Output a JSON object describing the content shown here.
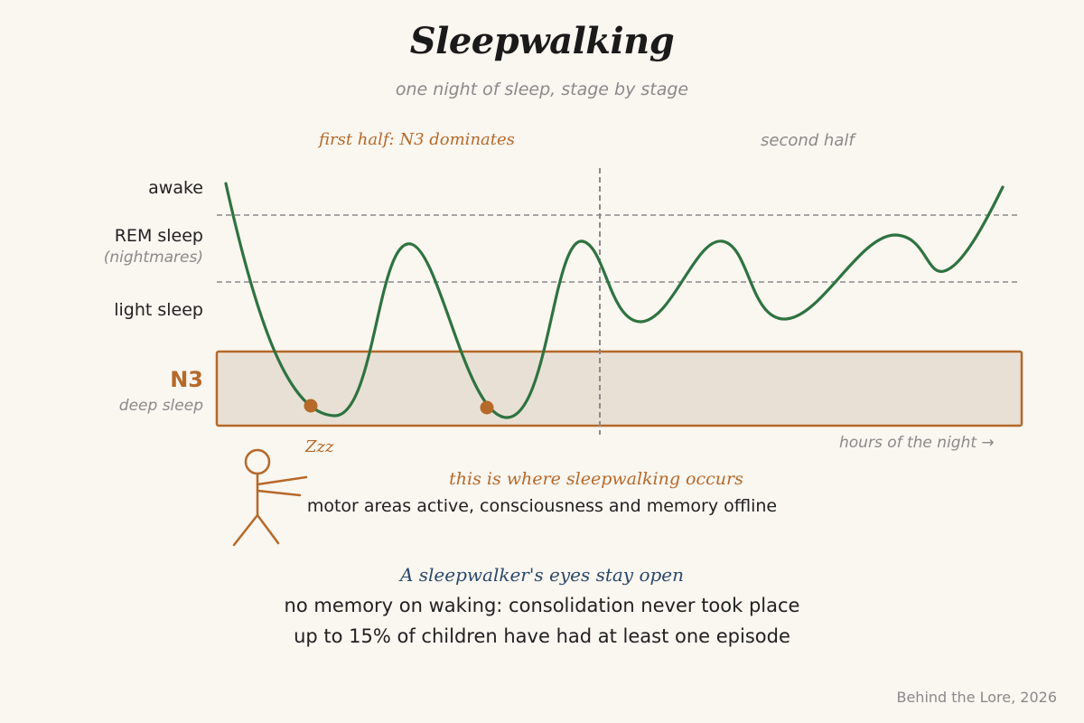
{
  "title": "Sleepwalking",
  "subtitle": "one night of sleep, stage by stage",
  "sections": {
    "first_half": "first half: N3 dominates",
    "second_half": "second half"
  },
  "stages": {
    "awake": "awake",
    "rem": "REM sleep",
    "rem_note": "(nightmares)",
    "light": "light sleep",
    "n3": "N3",
    "n3_note": "deep sleep"
  },
  "x_axis_label": "hours of the night →",
  "zzz": "Zzz",
  "callout": {
    "heading": "this is where sleepwalking occurs",
    "body": "motor areas active, consciousness and memory offline"
  },
  "facts": {
    "heading": "A sleepwalker's eyes stay open",
    "line1": "no memory on waking: consolidation never took place",
    "line2": "up to 15% of children have had at least one episode"
  },
  "footer": "Behind the Lore, 2026",
  "colors": {
    "curve": "#2e7340",
    "accent": "#b5692a",
    "n3_fill": "#e8e0d4",
    "navy": "#2b4a6b",
    "gray": "#8a8a8a"
  }
}
